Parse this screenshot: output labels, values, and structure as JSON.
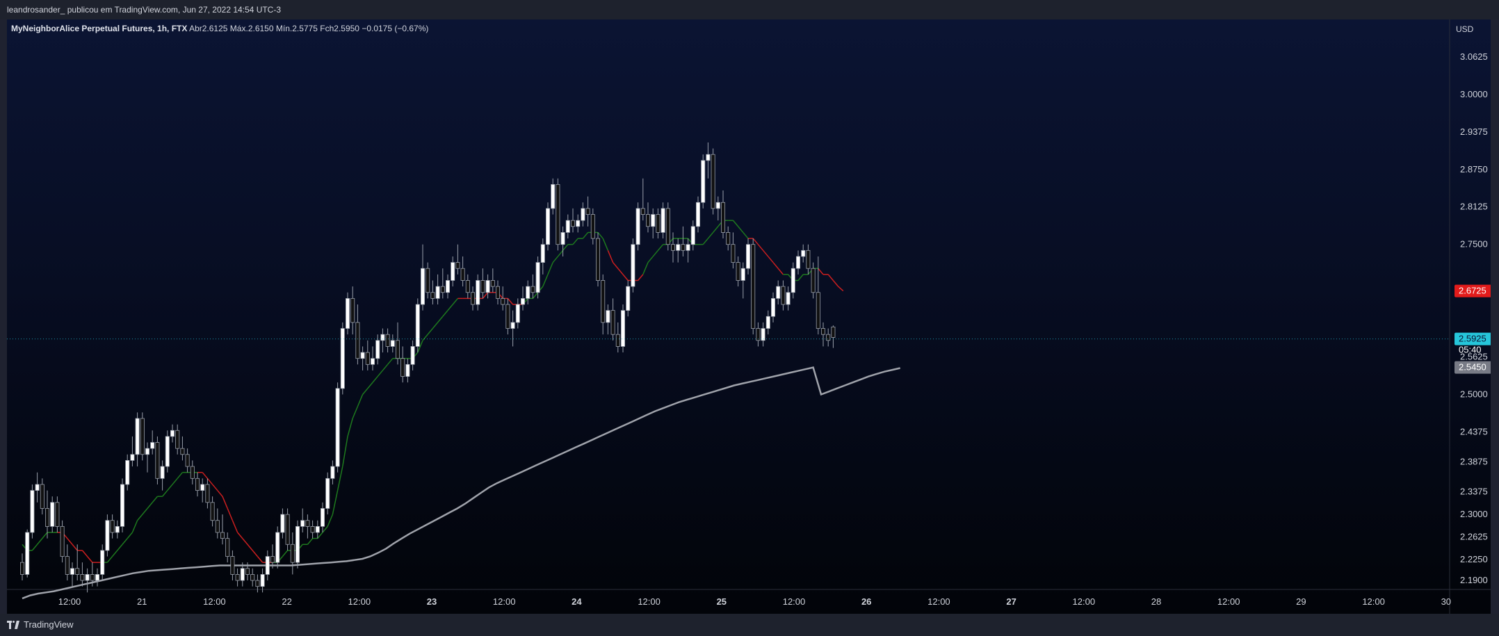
{
  "header": {
    "publisher_text": "leandrosander_ publicou em TradingView.com, Jun 27, 2022 14:54 UTC-3"
  },
  "legend": {
    "symbol": "MyNeighborAlice Perpetual Futures, 1h, FTX",
    "open_label": "Abr",
    "open_value": "2.6125",
    "high_label": "Máx.",
    "high_value": "2.6150",
    "low_label": "Mín.",
    "low_value": "2.5775",
    "close_label": "Fch",
    "close_value": "2.5950",
    "change_value": "−0.0175 (−0.67%)"
  },
  "footer": {
    "brand": "TradingView"
  },
  "colors": {
    "candle_up": "#ffffff",
    "candle_down": "#111111",
    "wick": "#9aa0ab",
    "ema_fast_bull": "#1e7a1e",
    "ema_fast_bear": "#cc1f1f",
    "ema_slow": "#a0a3ab",
    "last_price_badge": "#26c6da",
    "ema_fast_badge": "#e21b1b",
    "ema_slow_badge": "#787b86",
    "axis_text": "#d1d4dc"
  },
  "chart_data": {
    "type": "candlestick",
    "timeframe": "1h",
    "currency_label": "USD",
    "y_range": [
      2.175,
      3.125
    ],
    "y_ticks": [
      "3.0625",
      "3.0000",
      "2.9375",
      "2.8750",
      "2.8125",
      "2.7500",
      "2.5625",
      "2.5000",
      "2.4375",
      "2.3875",
      "2.3375",
      "2.3000",
      "2.2625",
      "2.2250",
      "2.1900"
    ],
    "x_ticks": [
      "12:00",
      "21",
      "12:00",
      "22",
      "12:00",
      "23",
      "12:00",
      "24",
      "12:00",
      "25",
      "12:00",
      "26",
      "12:00",
      "27",
      "12:00",
      "28",
      "12:00",
      "29",
      "12:00",
      "30"
    ],
    "x_bold_ticks": [
      "23",
      "24",
      "25",
      "26",
      "27"
    ],
    "price_labels": {
      "ema_fast": "2.6725",
      "last_close": "2.5950",
      "countdown": "05:40",
      "current": "2.5925",
      "ema_slow": "2.5450"
    },
    "candles": [
      [
        2.22,
        2.235,
        2.19,
        2.2
      ],
      [
        2.2,
        2.275,
        2.195,
        2.27
      ],
      [
        2.27,
        2.35,
        2.26,
        2.34
      ],
      [
        2.34,
        2.37,
        2.32,
        2.35
      ],
      [
        2.35,
        2.36,
        2.3,
        2.31
      ],
      [
        2.31,
        2.34,
        2.26,
        2.28
      ],
      [
        2.28,
        2.33,
        2.27,
        2.32
      ],
      [
        2.32,
        2.33,
        2.27,
        2.28
      ],
      [
        2.28,
        2.29,
        2.22,
        2.23
      ],
      [
        2.23,
        2.25,
        2.19,
        2.2
      ],
      [
        2.2,
        2.22,
        2.18,
        2.21
      ],
      [
        2.21,
        2.25,
        2.19,
        2.2
      ],
      [
        2.2,
        2.22,
        2.18,
        2.19
      ],
      [
        2.19,
        2.21,
        2.17,
        2.2
      ],
      [
        2.2,
        2.22,
        2.18,
        2.19
      ],
      [
        2.19,
        2.21,
        2.18,
        2.2
      ],
      [
        2.2,
        2.25,
        2.19,
        2.24
      ],
      [
        2.24,
        2.3,
        2.23,
        2.29
      ],
      [
        2.29,
        2.3,
        2.26,
        2.27
      ],
      [
        2.27,
        2.29,
        2.26,
        2.28
      ],
      [
        2.28,
        2.36,
        2.27,
        2.35
      ],
      [
        2.35,
        2.4,
        2.34,
        2.39
      ],
      [
        2.39,
        2.43,
        2.38,
        2.4
      ],
      [
        2.4,
        2.47,
        2.38,
        2.46
      ],
      [
        2.46,
        2.47,
        2.39,
        2.4
      ],
      [
        2.4,
        2.42,
        2.37,
        2.41
      ],
      [
        2.41,
        2.44,
        2.4,
        2.42
      ],
      [
        2.42,
        2.43,
        2.35,
        2.36
      ],
      [
        2.36,
        2.39,
        2.34,
        2.38
      ],
      [
        2.38,
        2.44,
        2.37,
        2.43
      ],
      [
        2.43,
        2.45,
        2.42,
        2.44
      ],
      [
        2.44,
        2.45,
        2.4,
        2.41
      ],
      [
        2.41,
        2.43,
        2.39,
        2.4
      ],
      [
        2.4,
        2.41,
        2.37,
        2.38
      ],
      [
        2.38,
        2.39,
        2.35,
        2.36
      ],
      [
        2.36,
        2.37,
        2.33,
        2.34
      ],
      [
        2.34,
        2.36,
        2.32,
        2.35
      ],
      [
        2.35,
        2.36,
        2.31,
        2.32
      ],
      [
        2.32,
        2.33,
        2.28,
        2.29
      ],
      [
        2.29,
        2.31,
        2.26,
        2.27
      ],
      [
        2.27,
        2.3,
        2.25,
        2.26
      ],
      [
        2.26,
        2.27,
        2.22,
        2.23
      ],
      [
        2.23,
        2.24,
        2.19,
        2.2
      ],
      [
        2.2,
        2.21,
        2.18,
        2.19
      ],
      [
        2.19,
        2.22,
        2.18,
        2.21
      ],
      [
        2.21,
        2.22,
        2.19,
        2.2
      ],
      [
        2.2,
        2.21,
        2.18,
        2.19
      ],
      [
        2.19,
        2.2,
        2.17,
        2.18
      ],
      [
        2.18,
        2.21,
        2.17,
        2.2
      ],
      [
        2.2,
        2.24,
        2.19,
        2.23
      ],
      [
        2.23,
        2.25,
        2.21,
        2.22
      ],
      [
        2.22,
        2.28,
        2.21,
        2.27
      ],
      [
        2.27,
        2.31,
        2.26,
        2.3
      ],
      [
        2.3,
        2.31,
        2.24,
        2.25
      ],
      [
        2.25,
        2.27,
        2.2,
        2.22
      ],
      [
        2.22,
        2.29,
        2.21,
        2.28
      ],
      [
        2.28,
        2.31,
        2.27,
        2.29
      ],
      [
        2.29,
        2.3,
        2.26,
        2.28
      ],
      [
        2.28,
        2.29,
        2.26,
        2.27
      ],
      [
        2.27,
        2.29,
        2.26,
        2.28
      ],
      [
        2.28,
        2.32,
        2.27,
        2.31
      ],
      [
        2.31,
        2.37,
        2.3,
        2.36
      ],
      [
        2.36,
        2.39,
        2.35,
        2.38
      ],
      [
        2.38,
        2.52,
        2.37,
        2.51
      ],
      [
        2.51,
        2.62,
        2.5,
        2.61
      ],
      [
        2.61,
        2.67,
        2.6,
        2.66
      ],
      [
        2.66,
        2.68,
        2.6,
        2.62
      ],
      [
        2.62,
        2.65,
        2.55,
        2.56
      ],
      [
        2.56,
        2.58,
        2.54,
        2.57
      ],
      [
        2.57,
        2.59,
        2.54,
        2.55
      ],
      [
        2.55,
        2.58,
        2.54,
        2.56
      ],
      [
        2.56,
        2.6,
        2.55,
        2.59
      ],
      [
        2.59,
        2.61,
        2.57,
        2.6
      ],
      [
        2.6,
        2.61,
        2.57,
        2.58
      ],
      [
        2.58,
        2.6,
        2.57,
        2.59
      ],
      [
        2.59,
        2.62,
        2.55,
        2.56
      ],
      [
        2.56,
        2.58,
        2.52,
        2.53
      ],
      [
        2.53,
        2.56,
        2.52,
        2.55
      ],
      [
        2.55,
        2.59,
        2.54,
        2.58
      ],
      [
        2.58,
        2.66,
        2.57,
        2.65
      ],
      [
        2.65,
        2.75,
        2.64,
        2.71
      ],
      [
        2.71,
        2.72,
        2.66,
        2.67
      ],
      [
        2.67,
        2.69,
        2.65,
        2.66
      ],
      [
        2.66,
        2.7,
        2.65,
        2.68
      ],
      [
        2.68,
        2.71,
        2.66,
        2.67
      ],
      [
        2.67,
        2.7,
        2.66,
        2.69
      ],
      [
        2.69,
        2.73,
        2.68,
        2.72
      ],
      [
        2.72,
        2.75,
        2.7,
        2.71
      ],
      [
        2.71,
        2.73,
        2.68,
        2.69
      ],
      [
        2.69,
        2.7,
        2.66,
        2.67
      ],
      [
        2.67,
        2.68,
        2.64,
        2.65
      ],
      [
        2.65,
        2.7,
        2.64,
        2.69
      ],
      [
        2.69,
        2.71,
        2.66,
        2.67
      ],
      [
        2.67,
        2.7,
        2.66,
        2.69
      ],
      [
        2.69,
        2.71,
        2.67,
        2.68
      ],
      [
        2.68,
        2.69,
        2.65,
        2.66
      ],
      [
        2.66,
        2.68,
        2.64,
        2.65
      ],
      [
        2.65,
        2.66,
        2.6,
        2.61
      ],
      [
        2.61,
        2.64,
        2.58,
        2.62
      ],
      [
        2.62,
        2.66,
        2.61,
        2.65
      ],
      [
        2.65,
        2.68,
        2.64,
        2.66
      ],
      [
        2.66,
        2.69,
        2.65,
        2.68
      ],
      [
        2.68,
        2.7,
        2.66,
        2.67
      ],
      [
        2.67,
        2.73,
        2.66,
        2.72
      ],
      [
        2.72,
        2.76,
        2.7,
        2.75
      ],
      [
        2.75,
        2.82,
        2.74,
        2.81
      ],
      [
        2.81,
        2.86,
        2.8,
        2.85
      ],
      [
        2.85,
        2.86,
        2.74,
        2.75
      ],
      [
        2.75,
        2.78,
        2.73,
        2.77
      ],
      [
        2.77,
        2.8,
        2.76,
        2.79
      ],
      [
        2.79,
        2.81,
        2.77,
        2.78
      ],
      [
        2.78,
        2.8,
        2.77,
        2.79
      ],
      [
        2.79,
        2.82,
        2.78,
        2.81
      ],
      [
        2.81,
        2.83,
        2.78,
        2.8
      ],
      [
        2.8,
        2.81,
        2.75,
        2.76
      ],
      [
        2.76,
        2.77,
        2.68,
        2.69
      ],
      [
        2.69,
        2.7,
        2.6,
        2.62
      ],
      [
        2.62,
        2.65,
        2.6,
        2.64
      ],
      [
        2.64,
        2.66,
        2.59,
        2.6
      ],
      [
        2.6,
        2.62,
        2.57,
        2.58
      ],
      [
        2.58,
        2.65,
        2.57,
        2.64
      ],
      [
        2.64,
        2.69,
        2.63,
        2.68
      ],
      [
        2.68,
        2.76,
        2.67,
        2.75
      ],
      [
        2.75,
        2.82,
        2.74,
        2.81
      ],
      [
        2.81,
        2.86,
        2.79,
        2.8
      ],
      [
        2.8,
        2.82,
        2.77,
        2.78
      ],
      [
        2.78,
        2.81,
        2.76,
        2.8
      ],
      [
        2.8,
        2.81,
        2.76,
        2.77
      ],
      [
        2.77,
        2.82,
        2.76,
        2.81
      ],
      [
        2.81,
        2.82,
        2.74,
        2.75
      ],
      [
        2.75,
        2.77,
        2.72,
        2.74
      ],
      [
        2.74,
        2.76,
        2.72,
        2.75
      ],
      [
        2.75,
        2.78,
        2.73,
        2.74
      ],
      [
        2.74,
        2.76,
        2.72,
        2.75
      ],
      [
        2.75,
        2.79,
        2.74,
        2.78
      ],
      [
        2.78,
        2.83,
        2.77,
        2.82
      ],
      [
        2.82,
        2.9,
        2.81,
        2.89
      ],
      [
        2.89,
        2.92,
        2.86,
        2.9
      ],
      [
        2.9,
        2.91,
        2.8,
        2.81
      ],
      [
        2.81,
        2.83,
        2.79,
        2.82
      ],
      [
        2.82,
        2.84,
        2.76,
        2.77
      ],
      [
        2.77,
        2.78,
        2.74,
        2.75
      ],
      [
        2.75,
        2.77,
        2.71,
        2.72
      ],
      [
        2.72,
        2.73,
        2.68,
        2.69
      ],
      [
        2.69,
        2.72,
        2.66,
        2.71
      ],
      [
        2.71,
        2.76,
        2.7,
        2.75
      ],
      [
        2.75,
        2.76,
        2.6,
        2.61
      ],
      [
        2.61,
        2.62,
        2.58,
        2.59
      ],
      [
        2.59,
        2.62,
        2.58,
        2.61
      ],
      [
        2.61,
        2.64,
        2.6,
        2.63
      ],
      [
        2.63,
        2.67,
        2.62,
        2.66
      ],
      [
        2.66,
        2.69,
        2.65,
        2.68
      ],
      [
        2.68,
        2.69,
        2.64,
        2.65
      ],
      [
        2.65,
        2.68,
        2.64,
        2.67
      ],
      [
        2.67,
        2.72,
        2.66,
        2.71
      ],
      [
        2.71,
        2.74,
        2.7,
        2.73
      ],
      [
        2.73,
        2.75,
        2.72,
        2.74
      ],
      [
        2.74,
        2.75,
        2.7,
        2.71
      ],
      [
        2.71,
        2.72,
        2.66,
        2.67
      ],
      [
        2.67,
        2.73,
        2.6,
        2.61
      ],
      [
        2.61,
        2.62,
        2.58,
        2.6
      ],
      [
        2.6,
        2.61,
        2.58,
        2.59
      ],
      [
        2.6125,
        2.615,
        2.5775,
        2.595
      ]
    ],
    "ema_fast": [
      2.25,
      2.24,
      2.24,
      2.25,
      2.26,
      2.27,
      2.27,
      2.27,
      2.27,
      2.26,
      2.25,
      2.24,
      2.24,
      2.23,
      2.22,
      2.22,
      2.22,
      2.22,
      2.23,
      2.24,
      2.25,
      2.26,
      2.27,
      2.29,
      2.3,
      2.31,
      2.32,
      2.33,
      2.33,
      2.34,
      2.35,
      2.36,
      2.37,
      2.37,
      2.37,
      2.37,
      2.37,
      2.36,
      2.35,
      2.34,
      2.33,
      2.31,
      2.29,
      2.27,
      2.26,
      2.25,
      2.24,
      2.23,
      2.22,
      2.22,
      2.22,
      2.22,
      2.23,
      2.24,
      2.24,
      2.24,
      2.25,
      2.25,
      2.26,
      2.26,
      2.27,
      2.28,
      2.3,
      2.34,
      2.38,
      2.43,
      2.46,
      2.48,
      2.5,
      2.51,
      2.52,
      2.53,
      2.54,
      2.55,
      2.56,
      2.56,
      2.56,
      2.56,
      2.56,
      2.57,
      2.59,
      2.6,
      2.61,
      2.62,
      2.63,
      2.64,
      2.65,
      2.66,
      2.66,
      2.66,
      2.66,
      2.66,
      2.66,
      2.67,
      2.67,
      2.67,
      2.66,
      2.66,
      2.65,
      2.65,
      2.65,
      2.66,
      2.66,
      2.67,
      2.68,
      2.7,
      2.72,
      2.73,
      2.74,
      2.75,
      2.75,
      2.76,
      2.76,
      2.77,
      2.77,
      2.77,
      2.76,
      2.74,
      2.72,
      2.71,
      2.7,
      2.69,
      2.69,
      2.69,
      2.7,
      2.72,
      2.73,
      2.74,
      2.75,
      2.75,
      2.76,
      2.76,
      2.76,
      2.76,
      2.75,
      2.75,
      2.75,
      2.76,
      2.77,
      2.78,
      2.79,
      2.79,
      2.79,
      2.78,
      2.77,
      2.76,
      2.76,
      2.75,
      2.74,
      2.73,
      2.72,
      2.71,
      2.7,
      2.7,
      2.69,
      2.69,
      2.7,
      2.7,
      2.71,
      2.71,
      2.7,
      2.7,
      2.69,
      2.68,
      2.6725
    ],
    "ema_fast_bear_ranges": [
      [
        8,
        16
      ],
      [
        36,
        50
      ],
      [
        88,
        100
      ],
      [
        118,
        124
      ],
      [
        146,
        152
      ],
      [
        160,
        173
      ]
    ],
    "ema_slow": [
      2.16,
      2.165,
      2.168,
      2.17,
      2.172,
      2.175,
      2.178,
      2.181,
      2.184,
      2.187,
      2.19,
      2.193,
      2.196,
      2.199,
      2.202,
      2.204,
      2.206,
      2.207,
      2.208,
      2.209,
      2.21,
      2.211,
      2.212,
      2.213,
      2.214,
      2.215,
      2.215,
      2.215,
      2.215,
      2.215,
      2.215,
      2.215,
      2.215,
      2.215,
      2.215,
      2.216,
      2.217,
      2.218,
      2.219,
      2.22,
      2.221,
      2.222,
      2.224,
      2.226,
      2.23,
      2.236,
      2.243,
      2.252,
      2.26,
      2.268,
      2.275,
      2.282,
      2.289,
      2.296,
      2.303,
      2.31,
      2.318,
      2.327,
      2.336,
      2.345,
      2.352,
      2.358,
      2.364,
      2.37,
      2.376,
      2.382,
      2.388,
      2.394,
      2.4,
      2.406,
      2.412,
      2.418,
      2.424,
      2.43,
      2.436,
      2.442,
      2.448,
      2.454,
      2.46,
      2.466,
      2.472,
      2.477,
      2.482,
      2.487,
      2.491,
      2.495,
      2.499,
      2.503,
      2.507,
      2.511,
      2.515,
      2.518,
      2.521,
      2.524,
      2.527,
      2.53,
      2.533,
      2.536,
      2.539,
      2.542,
      2.545,
      2.5,
      2.505,
      2.51,
      2.515,
      2.52,
      2.525,
      2.53,
      2.534,
      2.538,
      2.541,
      2.544
    ]
  }
}
